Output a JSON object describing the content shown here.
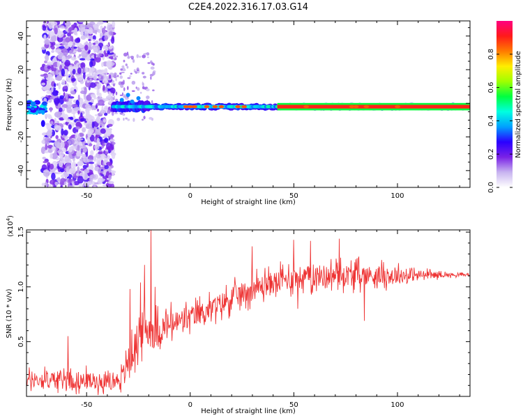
{
  "title": "C2E4.2022.316.17.03.G14",
  "chart_data": [
    {
      "type": "heatmap",
      "xlabel": "Height of straight line (km)",
      "ylabel": "Frequency (Hz)",
      "xlim": [
        -79,
        135
      ],
      "ylim": [
        -50,
        49
      ],
      "xticks": [
        -50,
        0,
        50,
        100
      ],
      "yticks": [
        -40,
        -20,
        0,
        20,
        40
      ],
      "colorbar": {
        "label": "Normalized spectral amplitude",
        "ticks": [
          "0.0",
          "0.2",
          "0.4",
          "0.6",
          "0.8"
        ],
        "range": [
          0,
          1
        ],
        "colors": [
          "#ffffff",
          "#c8b4f0",
          "#7a22e6",
          "#2a00ff",
          "#00a0ff",
          "#00ffe0",
          "#00ff40",
          "#a0ff00",
          "#ffee00",
          "#ff7a00",
          "#ff1a1a",
          "#ff0080"
        ]
      },
      "features": {
        "noise_band_x": [
          -71,
          -37
        ],
        "main_line_freq": -2,
        "main_line_x_start": -37,
        "solid_line_x_start": 42,
        "early_signal_x": [
          -79,
          -70
        ],
        "high_amp_points_x": [
          -2,
          0,
          2,
          8,
          12,
          15,
          23,
          26,
          56,
          78,
          80,
          85,
          100
        ]
      }
    },
    {
      "type": "line",
      "xlabel": "Height of straight line (km)",
      "ylabel": "SNR (10 * v/v)",
      "yscale_label": "(x10",
      "yscale_exp": "4",
      "yscale_close": ")",
      "xlim": [
        -79,
        135
      ],
      "ylim": [
        0,
        1.52
      ],
      "xticks": [
        -50,
        0,
        50,
        100
      ],
      "yticks": [
        "0.5",
        "1.0",
        "1.5"
      ],
      "series": [
        {
          "color": "#ee3333",
          "envelope_x": [
            -79,
            -60,
            -45,
            -38,
            -33,
            -28,
            -24,
            -20,
            -17,
            -10,
            0,
            10,
            20,
            30,
            40,
            50,
            60,
            80,
            100,
            115,
            125,
            135
          ],
          "envelope_mean": [
            0.15,
            0.15,
            0.14,
            0.13,
            0.17,
            0.38,
            0.6,
            0.62,
            0.58,
            0.65,
            0.72,
            0.8,
            0.9,
            0.98,
            1.04,
            1.08,
            1.1,
            1.11,
            1.1,
            1.11,
            1.11,
            1.11
          ],
          "envelope_spread": [
            0.12,
            0.16,
            0.13,
            0.1,
            0.15,
            0.25,
            0.3,
            0.3,
            0.28,
            0.22,
            0.18,
            0.17,
            0.18,
            0.18,
            0.18,
            0.18,
            0.18,
            0.17,
            0.13,
            0.06,
            0.03,
            0.02
          ],
          "peaks": [
            [
              -59,
              0.55
            ],
            [
              -29,
              0.98
            ],
            [
              -24,
              1.04
            ],
            [
              -22,
              1.2
            ],
            [
              -19,
              1.52
            ],
            [
              -17,
              1.0
            ],
            [
              30,
              1.37
            ],
            [
              50,
              1.43
            ],
            [
              58,
              1.42
            ],
            [
              72,
              1.44
            ],
            [
              84,
              0.69
            ],
            [
              52,
              0.8
            ]
          ]
        }
      ]
    }
  ]
}
